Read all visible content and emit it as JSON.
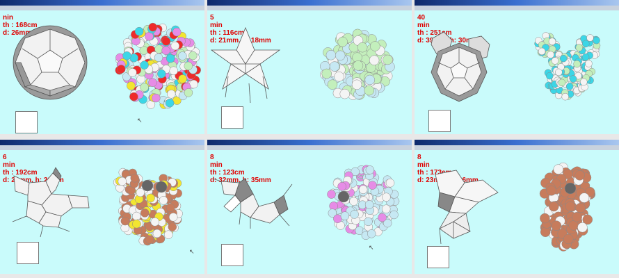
{
  "panels": [
    {
      "info": [
        "nin",
        "th : 168cm",
        "d: 26mm, h: 26mm"
      ]
    },
    {
      "info": [
        "5",
        "min",
        "th : 116cm",
        "d: 21mm, h: 18mm"
      ]
    },
    {
      "info": [
        "40",
        "min",
        "th : 251cm",
        "d: 39mm, h: 30mm"
      ]
    },
    {
      "info": [
        "6",
        "min",
        "th : 192cm",
        "d: 26mm, h: 29mm"
      ]
    },
    {
      "info": [
        "8",
        "min",
        "th : 123cm",
        "d: 32mm, h: 35mm"
      ]
    },
    {
      "info": [
        "8",
        "min",
        "th : 173cm",
        "d: 23mm, h: 26mm"
      ]
    }
  ],
  "colors": {
    "background": "#c9fbfb",
    "title_bar_dark": "#0f2a6b",
    "title_bar_light": "#a9c7ef",
    "info_text": "#e00000",
    "tile_white": "#f4f4f4",
    "tile_grey": "#7a7a7a",
    "bead_pink": "#e68ce6",
    "bead_cyan": "#3cd6e6",
    "bead_red": "#ee2a2a",
    "bead_yellow": "#f2e530",
    "bead_green": "#c3efbc",
    "bead_blue": "#c6e8f3",
    "bead_brown": "#c77c5c",
    "bead_dark": "#666666"
  }
}
